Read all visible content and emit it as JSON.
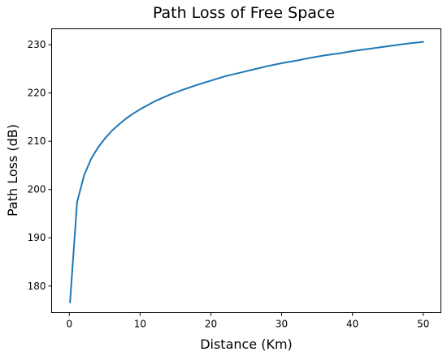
{
  "chart_data": {
    "type": "line",
    "title": "Path Loss of Free Space",
    "xlabel": "Distance (Km)",
    "ylabel": "Path Loss (dB)",
    "xlim": [
      -2.5,
      52.5
    ],
    "ylim": [
      174.5,
      233.3
    ],
    "xticks": [
      0,
      10,
      20,
      30,
      40,
      50
    ],
    "yticks": [
      180,
      190,
      200,
      210,
      220,
      230
    ],
    "xtick_labels": [
      "0",
      "10",
      "20",
      "30",
      "40",
      "50"
    ],
    "ytick_labels": [
      "180",
      "190",
      "200",
      "210",
      "220",
      "230"
    ],
    "grid": false,
    "series": [
      {
        "color": "#1f77b4",
        "x": [
          0.1,
          1.1,
          2.1,
          3.1,
          4.1,
          5.1,
          6.1,
          7.1,
          8.1,
          9.1,
          10.1,
          12.1,
          14.1,
          16.1,
          18.1,
          20.1,
          22.1,
          24.1,
          26.1,
          28.1,
          30.1,
          32.1,
          34.1,
          36.1,
          38.1,
          40.1,
          42.1,
          44.1,
          46.1,
          48.1,
          50.0
        ],
        "y": [
          176.6,
          197.4,
          203.0,
          206.4,
          208.8,
          210.7,
          212.3,
          213.6,
          214.8,
          215.8,
          216.7,
          218.3,
          219.6,
          220.7,
          221.7,
          222.6,
          223.5,
          224.2,
          224.9,
          225.6,
          226.2,
          226.7,
          227.3,
          227.8,
          228.2,
          228.7,
          229.1,
          229.5,
          229.9,
          230.3,
          230.6
        ]
      }
    ]
  }
}
